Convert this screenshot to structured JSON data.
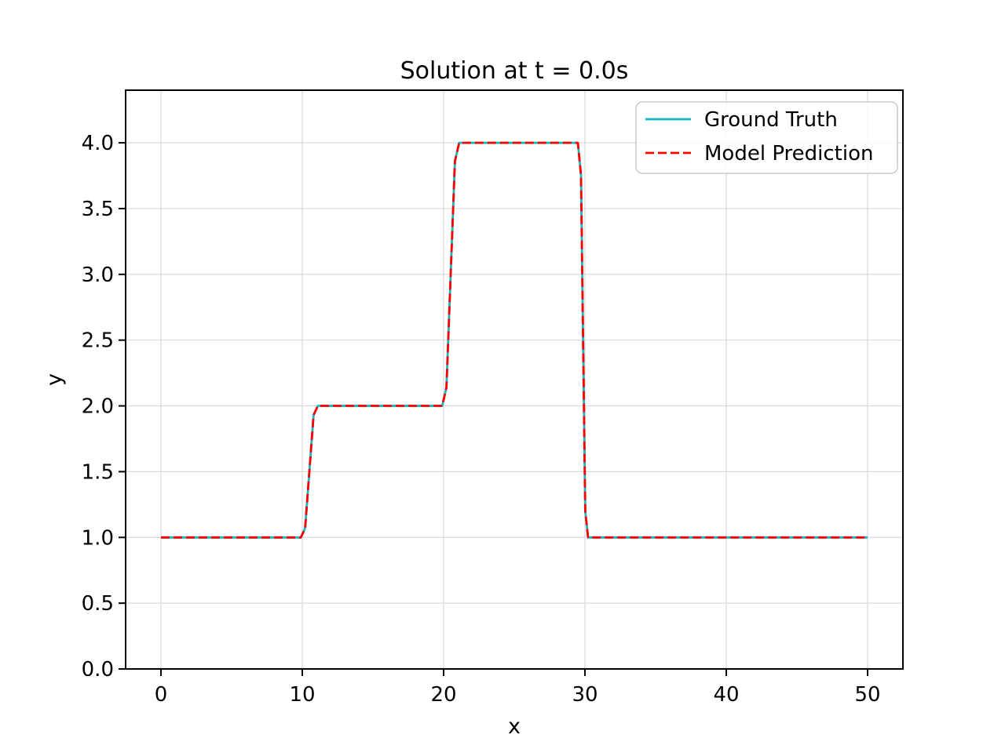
{
  "figure": {
    "background": "#ffffff"
  },
  "chart_data": {
    "type": "line",
    "title": "Solution at t = 0.0s",
    "xlabel": "x",
    "ylabel": "y",
    "xlim": [
      -2.5,
      52.5
    ],
    "ylim": [
      0,
      4.4
    ],
    "x_ticks": [
      0,
      10,
      20,
      30,
      40,
      50
    ],
    "x_tick_labels": [
      "0",
      "10",
      "20",
      "30",
      "40",
      "50"
    ],
    "y_ticks": [
      0.0,
      0.5,
      1.0,
      1.5,
      2.0,
      2.5,
      3.0,
      3.5,
      4.0
    ],
    "y_tick_labels": [
      "0.0",
      "0.5",
      "1.0",
      "1.5",
      "2.0",
      "2.5",
      "3.0",
      "3.5",
      "4.0"
    ],
    "grid": true,
    "legend_position": "upper right",
    "series": [
      {
        "name": "Ground Truth",
        "color": "#11b8be",
        "style": "solid",
        "points": [
          [
            0,
            1
          ],
          [
            9.9,
            1
          ],
          [
            10.2,
            1.07
          ],
          [
            10.8,
            1.93
          ],
          [
            11.1,
            2
          ],
          [
            19.9,
            2
          ],
          [
            20.2,
            2.14
          ],
          [
            20.8,
            3.86
          ],
          [
            21.1,
            4
          ],
          [
            29.5,
            4
          ],
          [
            29.72,
            3.75
          ],
          [
            30.02,
            1.2
          ],
          [
            30.22,
            1
          ],
          [
            50,
            1
          ]
        ]
      },
      {
        "name": "Model Prediction",
        "color": "#ff0000",
        "style": "dashed",
        "points": [
          [
            0,
            1
          ],
          [
            9.9,
            1
          ],
          [
            10.2,
            1.07
          ],
          [
            10.8,
            1.93
          ],
          [
            11.1,
            2
          ],
          [
            19.9,
            2
          ],
          [
            20.2,
            2.14
          ],
          [
            20.8,
            3.86
          ],
          [
            21.1,
            4
          ],
          [
            29.5,
            4
          ],
          [
            29.72,
            3.75
          ],
          [
            30.02,
            1.2
          ],
          [
            30.22,
            1
          ],
          [
            50,
            1
          ]
        ]
      }
    ]
  },
  "colors": {
    "grid": "#d9d9d9",
    "spine": "#000000",
    "tick": "#000000",
    "legend_border": "#cccccc"
  }
}
